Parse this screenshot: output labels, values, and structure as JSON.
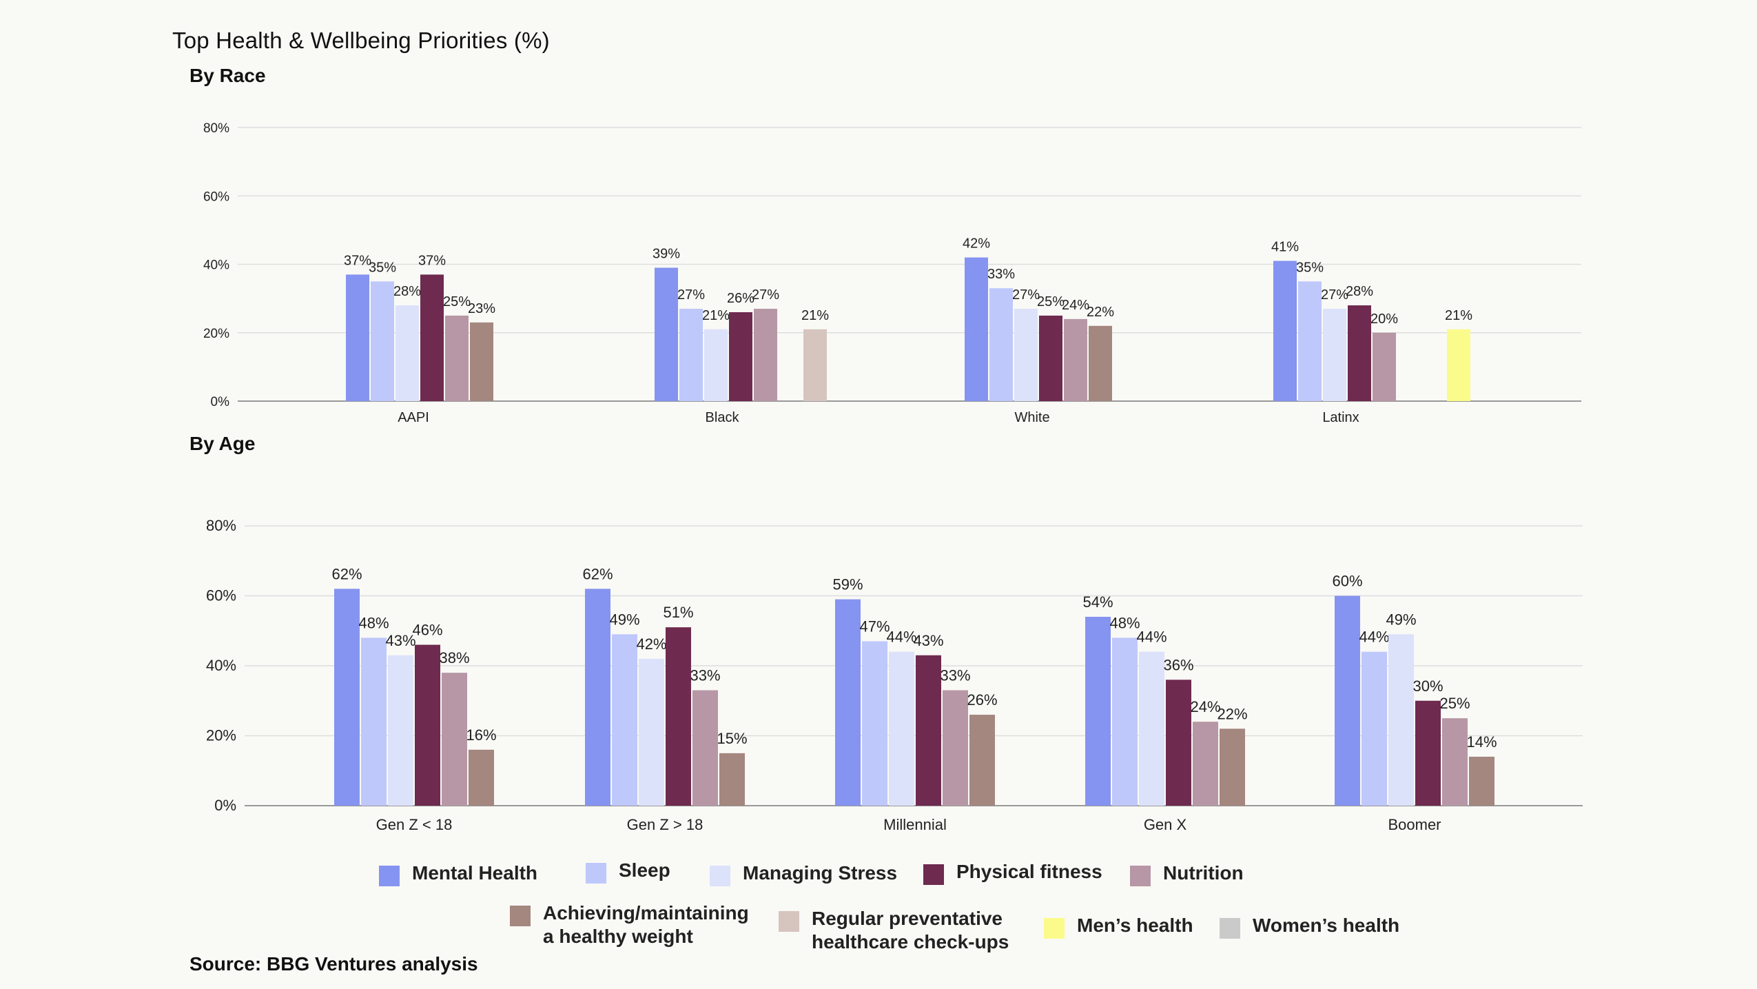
{
  "title": "Top Health & Wellbeing Priorities (%)",
  "source": "Source: BBG Ventures analysis",
  "colors": {
    "mental_health": "#8594f0",
    "sleep": "#bfc8fb",
    "managing_stress": "#dde2fb",
    "physical_fitness": "#6e2a4f",
    "nutrition": "#b797a5",
    "healthy_weight": "#a4877f",
    "preventative": "#d6c4be",
    "mens_health": "#fbfb8b",
    "womens_health": "#cacaca"
  },
  "legend": [
    {
      "key": "mental_health",
      "label": "Mental Health",
      "icon": "mental-health-swatch"
    },
    {
      "key": "sleep",
      "label": "Sleep",
      "icon": "sleep-swatch"
    },
    {
      "key": "managing_stress",
      "label": "Managing Stress",
      "icon": "managing-stress-swatch"
    },
    {
      "key": "physical_fitness",
      "label": "Physical fitness",
      "icon": "physical-fitness-swatch"
    },
    {
      "key": "nutrition",
      "label": "Nutrition",
      "icon": "nutrition-swatch"
    },
    {
      "key": "healthy_weight",
      "label": "Achieving/maintaining\na healthy weight",
      "icon": "healthy-weight-swatch"
    },
    {
      "key": "preventative",
      "label": "Regular preventative\nhealthcare check-ups",
      "icon": "preventative-swatch"
    },
    {
      "key": "mens_health",
      "label": "Men’s health",
      "icon": "mens-health-swatch"
    },
    {
      "key": "womens_health",
      "label": "Women’s health",
      "icon": "womens-health-swatch"
    }
  ],
  "chart_data": [
    {
      "type": "bar",
      "title": "By Race",
      "categories": [
        "AAPI",
        "Black",
        "White",
        "Latinx"
      ],
      "ylim": [
        0,
        80
      ],
      "yticks": [
        0,
        20,
        40,
        60,
        80
      ],
      "ytick_labels": [
        "0%",
        "20%",
        "40%",
        "60%",
        "80%"
      ],
      "grid": true,
      "series_keys": [
        "mental_health",
        "sleep",
        "managing_stress",
        "physical_fitness",
        "nutrition",
        "healthy_weight",
        "preventative",
        "mens_health"
      ],
      "groups": [
        [
          37,
          35,
          28,
          37,
          25,
          23,
          null,
          null
        ],
        [
          39,
          27,
          21,
          26,
          27,
          null,
          21,
          null
        ],
        [
          42,
          33,
          27,
          25,
          24,
          22,
          null,
          null
        ],
        [
          41,
          35,
          27,
          28,
          20,
          null,
          null,
          21
        ]
      ],
      "labels": [
        [
          "37%",
          "35%",
          "28%",
          "37%",
          "25%",
          "23%",
          null,
          null
        ],
        [
          "39%",
          "27%",
          "21%",
          "26%",
          "27%",
          null,
          "21%",
          null
        ],
        [
          "42%",
          "33%",
          "27%",
          "25%",
          "24%",
          "22%",
          null,
          null
        ],
        [
          "41%",
          "35%",
          "27%",
          "28%",
          "20%",
          null,
          null,
          "21%"
        ]
      ]
    },
    {
      "type": "bar",
      "title": "By Age",
      "categories": [
        "Gen Z < 18",
        "Gen Z > 18",
        "Millennial",
        "Gen X",
        "Boomer"
      ],
      "ylim": [
        0,
        80
      ],
      "yticks": [
        0,
        20,
        40,
        60,
        80
      ],
      "ytick_labels": [
        "0%",
        "20%",
        "40%",
        "60%",
        "80%"
      ],
      "grid": true,
      "series_keys": [
        "mental_health",
        "sleep",
        "managing_stress",
        "physical_fitness",
        "nutrition",
        "healthy_weight"
      ],
      "groups": [
        [
          62,
          48,
          43,
          46,
          38,
          16
        ],
        [
          62,
          49,
          42,
          51,
          33,
          15
        ],
        [
          59,
          47,
          44,
          43,
          33,
          26
        ],
        [
          54,
          48,
          44,
          36,
          24,
          22
        ],
        [
          60,
          44,
          49,
          30,
          25,
          14
        ]
      ],
      "labels": [
        [
          "62%",
          "48%",
          "43%",
          "46%",
          "38%",
          "16%"
        ],
        [
          "62%",
          "49%",
          "42%",
          "51%",
          "33%",
          "15%"
        ],
        [
          "59%",
          "47%",
          "44%",
          "43%",
          "33%",
          "26%"
        ],
        [
          "54%",
          "48%",
          "44%",
          "36%",
          "24%",
          "22%"
        ],
        [
          "60%",
          "44%",
          "49%",
          "30%",
          "25%",
          "14%"
        ]
      ]
    }
  ]
}
